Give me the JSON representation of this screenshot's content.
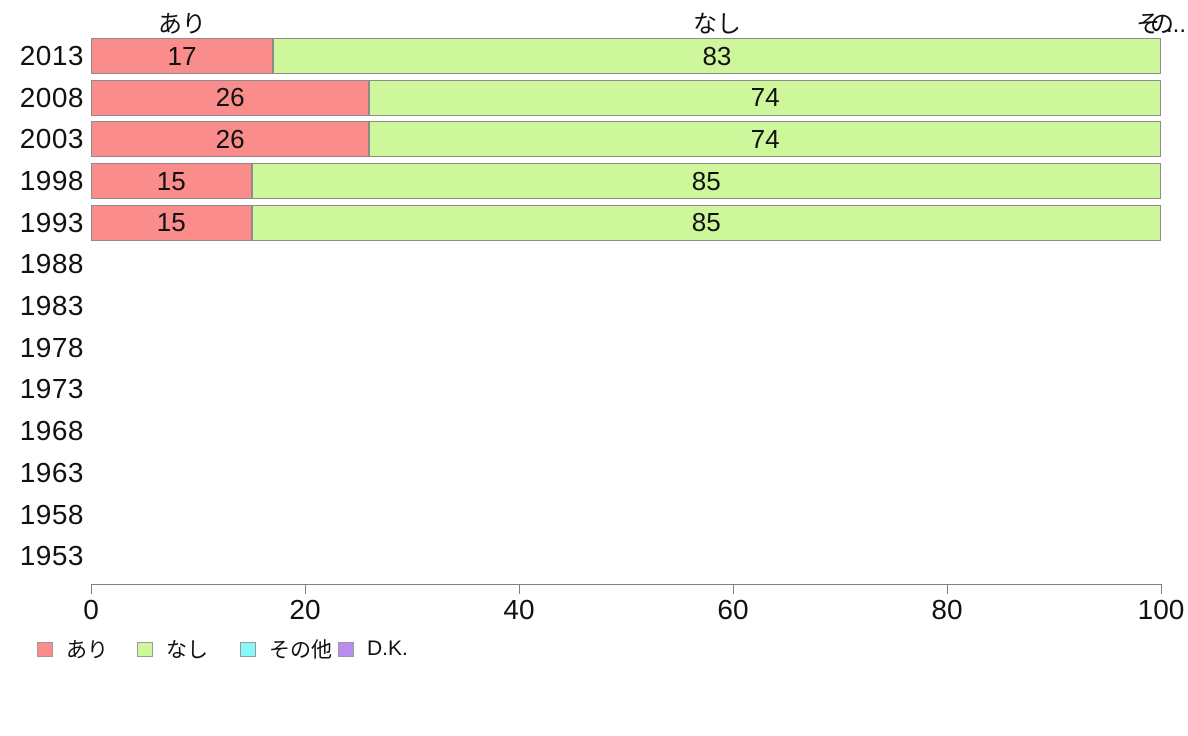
{
  "chart_data": {
    "type": "bar",
    "orientation": "horizontal",
    "stacked": true,
    "title": "",
    "xlabel": "",
    "ylabel": "",
    "xlim": [
      0,
      100
    ],
    "x_ticks": [
      0,
      20,
      40,
      60,
      80,
      100
    ],
    "grid": false,
    "legend_position": "bottom",
    "categories": [
      "2013",
      "2008",
      "2003",
      "1998",
      "1993",
      "1988",
      "1983",
      "1978",
      "1973",
      "1968",
      "1963",
      "1958",
      "1953"
    ],
    "series": [
      {
        "key": "ari",
        "name": "あり",
        "color": "#fa8c8c",
        "values": [
          17,
          26,
          26,
          15,
          15,
          null,
          null,
          null,
          null,
          null,
          null,
          null,
          null
        ]
      },
      {
        "key": "nashi",
        "name": "なし",
        "color": "#cef79b",
        "values": [
          83,
          74,
          74,
          85,
          85,
          null,
          null,
          null,
          null,
          null,
          null,
          null,
          null
        ]
      },
      {
        "key": "sonota",
        "name": "その他",
        "color": "#87f7f7",
        "values": [
          null,
          null,
          null,
          null,
          null,
          null,
          null,
          null,
          null,
          null,
          null,
          null,
          null
        ]
      },
      {
        "key": "dk",
        "name": "D.K.",
        "color": "#b98cee",
        "values": [
          null,
          null,
          null,
          null,
          null,
          null,
          null,
          null,
          null,
          null,
          null,
          null,
          null
        ]
      }
    ],
    "top_labels": [
      "あり",
      "なし"
    ],
    "top_label_truncated": {
      "kana": "その",
      "dots": "..."
    },
    "colors": {
      "bar_border": "#8c8c8c",
      "axis": "#808080",
      "text": "#111111",
      "background": "#ffffff"
    }
  }
}
